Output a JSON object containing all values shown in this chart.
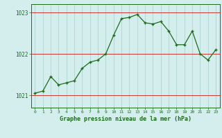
{
  "x": [
    0,
    1,
    2,
    3,
    4,
    5,
    6,
    7,
    8,
    9,
    10,
    11,
    12,
    13,
    14,
    15,
    16,
    17,
    18,
    19,
    20,
    21,
    22,
    23
  ],
  "y": [
    1021.05,
    1021.1,
    1021.45,
    1021.25,
    1021.3,
    1021.35,
    1021.65,
    1021.8,
    1021.85,
    1022.0,
    1022.45,
    1022.85,
    1022.88,
    1022.95,
    1022.75,
    1022.72,
    1022.78,
    1022.55,
    1022.22,
    1022.22,
    1022.55,
    1022.0,
    1021.85,
    1022.1
  ],
  "line_color": "#1a6b1a",
  "marker_color": "#1a6b1a",
  "bg_color": "#d4eeee",
  "grid_color": "#aacccc",
  "xlabel": "Graphe pression niveau de la mer (hPa)",
  "xlabel_color": "#1a6b1a",
  "tick_color": "#1a6b1a",
  "red_line_color": "#cc3333",
  "yticks": [
    1021,
    1022,
    1023
  ],
  "ylim": [
    1020.7,
    1023.2
  ],
  "xlim": [
    -0.5,
    23.5
  ],
  "xtick_labels": [
    "0",
    "1",
    "2",
    "3",
    "4",
    "5",
    "6",
    "7",
    "8",
    "9",
    "10",
    "11",
    "12",
    "13",
    "14",
    "15",
    "16",
    "17",
    "18",
    "19",
    "20",
    "21",
    "22",
    "23"
  ]
}
